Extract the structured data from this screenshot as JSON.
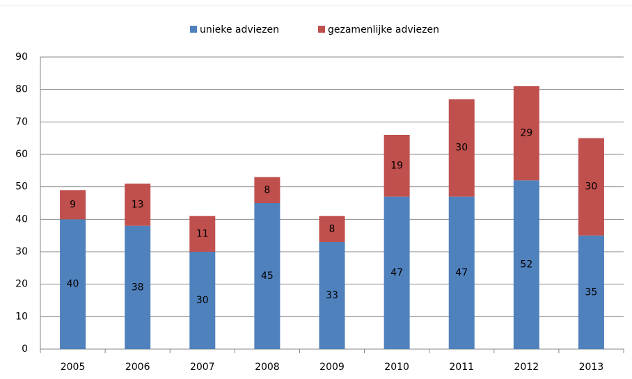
{
  "chart_data": {
    "type": "stacked_bar",
    "categories": [
      "2005",
      "2006",
      "2007",
      "2008",
      "2009",
      "2010",
      "2011",
      "2012",
      "2013"
    ],
    "series": [
      {
        "name": "unieke adviezen",
        "color": "#4f81bd",
        "values": [
          40,
          38,
          30,
          45,
          33,
          47,
          47,
          52,
          35
        ]
      },
      {
        "name": "gezamenlijke adviezen",
        "color": "#c0504d",
        "values": [
          9,
          13,
          11,
          8,
          8,
          19,
          30,
          29,
          30
        ]
      }
    ],
    "ylim": [
      0,
      90
    ],
    "yticks": [
      0,
      10,
      20,
      30,
      40,
      50,
      60,
      70,
      80,
      90
    ],
    "grid": true,
    "legend": "top",
    "data_labels": true
  }
}
